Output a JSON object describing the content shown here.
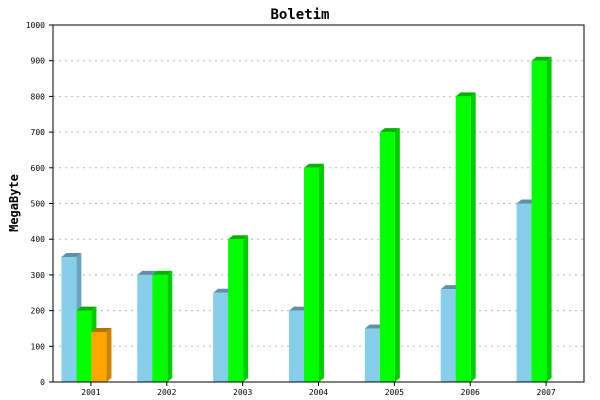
{
  "chart_data": {
    "type": "bar",
    "title": "Boletim",
    "xlabel": "",
    "ylabel": "MegaByte",
    "ylim": [
      0,
      1000
    ],
    "yticks": [
      "0",
      "100",
      "200",
      "300",
      "400",
      "500",
      "600",
      "700",
      "800",
      "900",
      "1000"
    ],
    "grid": true,
    "bar_style": "3d",
    "categories": [
      "2001",
      "2002",
      "2003",
      "2004",
      "2005",
      "2006",
      "2007"
    ],
    "series": [
      {
        "color": "#87ceeb",
        "values": [
          350,
          300,
          250,
          200,
          150,
          260,
          500
        ]
      },
      {
        "color": "#00ff00",
        "values": [
          200,
          300,
          400,
          600,
          700,
          800,
          900
        ]
      },
      {
        "color": "#ffa500",
        "values": [
          140,
          null,
          null,
          null,
          null,
          null,
          null
        ]
      }
    ]
  }
}
